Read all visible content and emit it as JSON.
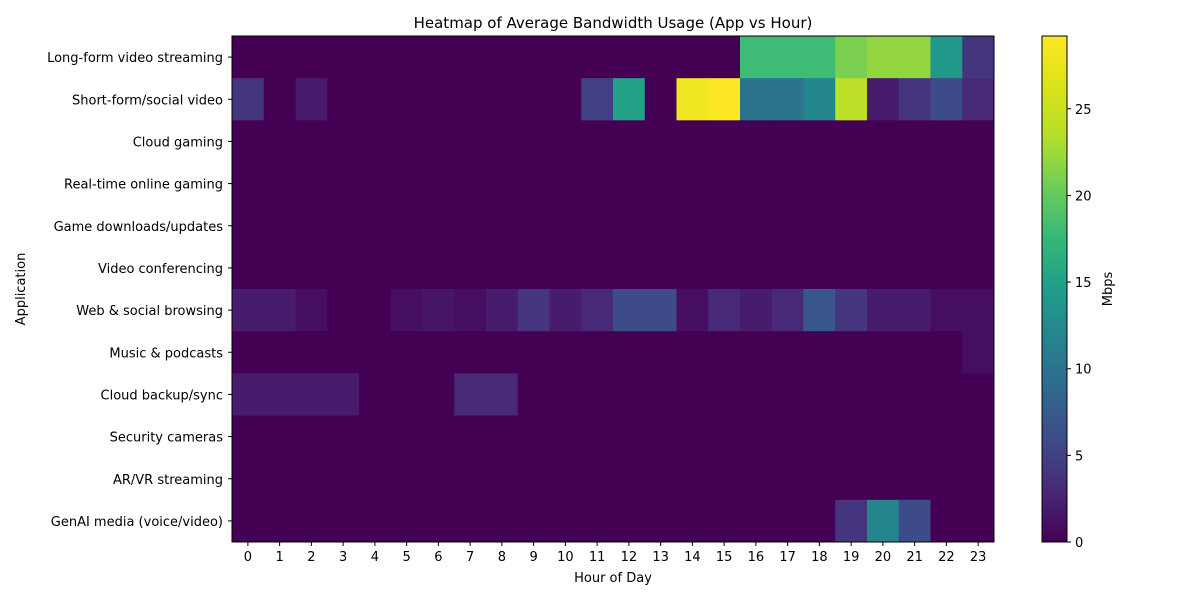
{
  "chart_data": {
    "type": "heatmap",
    "title": "Heatmap of Average Bandwidth Usage (App vs Hour)",
    "xlabel": "Hour of Day",
    "ylabel": "Application",
    "x": [
      "0",
      "1",
      "2",
      "3",
      "4",
      "5",
      "6",
      "7",
      "8",
      "9",
      "10",
      "11",
      "12",
      "13",
      "14",
      "15",
      "16",
      "17",
      "18",
      "19",
      "20",
      "21",
      "22",
      "23"
    ],
    "y": [
      "Long-form video streaming",
      "Short-form/social video",
      "Cloud gaming",
      "Real-time online gaming",
      "Game downloads/updates",
      "Video conferencing",
      "Web & social browsing",
      "Music & podcasts",
      "Cloud backup/sync",
      "Security cameras",
      "AR/VR streaming",
      "GenAI media (voice/video)"
    ],
    "values": [
      [
        0,
        0,
        0,
        0,
        0,
        0,
        0,
        0,
        0,
        0,
        0,
        0,
        0,
        0,
        0,
        0,
        18,
        18,
        18,
        21,
        22,
        22,
        14,
        4
      ],
      [
        4,
        0,
        2,
        0,
        0,
        0,
        0,
        0,
        0,
        0,
        0,
        5,
        15,
        0,
        28,
        29,
        10,
        10,
        12,
        24,
        2,
        4,
        6,
        3
      ],
      [
        0,
        0,
        0,
        0,
        0,
        0,
        0,
        0,
        0,
        0,
        0,
        0,
        0,
        0,
        0,
        0,
        0,
        0,
        0,
        0,
        0,
        0,
        0,
        0
      ],
      [
        0,
        0,
        0,
        0,
        0,
        0,
        0,
        0,
        0,
        0,
        0,
        0,
        0,
        0,
        0,
        0,
        0,
        0,
        0,
        0,
        0,
        0,
        0,
        0
      ],
      [
        0,
        0,
        0,
        0,
        0,
        0,
        0,
        0,
        0,
        0,
        0,
        0,
        0,
        0,
        0,
        0,
        0,
        0,
        0,
        0,
        0,
        0,
        0,
        0
      ],
      [
        0,
        0,
        0,
        0,
        0,
        0,
        0,
        0,
        0,
        0,
        0,
        0,
        0,
        0,
        0,
        0,
        0,
        0,
        0,
        0,
        0,
        0,
        0,
        0
      ],
      [
        2,
        2,
        1,
        0,
        0,
        1,
        1.5,
        1,
        2,
        4,
        2,
        3,
        6,
        6,
        1,
        3,
        2,
        3,
        7,
        4,
        2,
        2,
        1,
        1
      ],
      [
        0,
        0,
        0,
        0,
        0,
        0,
        0,
        0,
        0,
        0,
        0,
        0,
        0,
        0,
        0,
        0,
        0,
        0,
        0,
        0,
        0,
        0,
        0,
        1
      ],
      [
        2,
        2,
        2,
        2,
        0,
        0,
        0,
        3,
        3,
        0,
        0,
        0,
        0,
        0,
        0,
        0,
        0,
        0,
        0,
        0,
        0,
        0,
        0,
        0
      ],
      [
        0,
        0,
        0,
        0,
        0,
        0,
        0,
        0,
        0,
        0,
        0,
        0,
        0,
        0,
        0,
        0,
        0,
        0,
        0,
        0,
        0,
        0,
        0,
        0
      ],
      [
        0,
        0,
        0,
        0,
        0,
        0,
        0,
        0,
        0,
        0,
        0,
        0,
        0,
        0,
        0,
        0,
        0,
        0,
        0,
        0,
        0,
        0,
        0,
        0
      ],
      [
        0,
        0,
        0,
        0,
        0,
        0,
        0,
        0,
        0,
        0,
        0,
        0,
        0,
        0,
        0,
        0,
        0,
        0,
        0,
        4,
        12,
        6,
        0,
        0
      ]
    ],
    "vmin": 0,
    "vmax": 29.2,
    "colormap": "viridis",
    "colorbar": {
      "label": "Mbps",
      "ticks": [
        0,
        5,
        10,
        15,
        20,
        25
      ],
      "tick_labels": [
        "0",
        "5",
        "10",
        "15",
        "20",
        "25"
      ]
    },
    "grid": false
  }
}
